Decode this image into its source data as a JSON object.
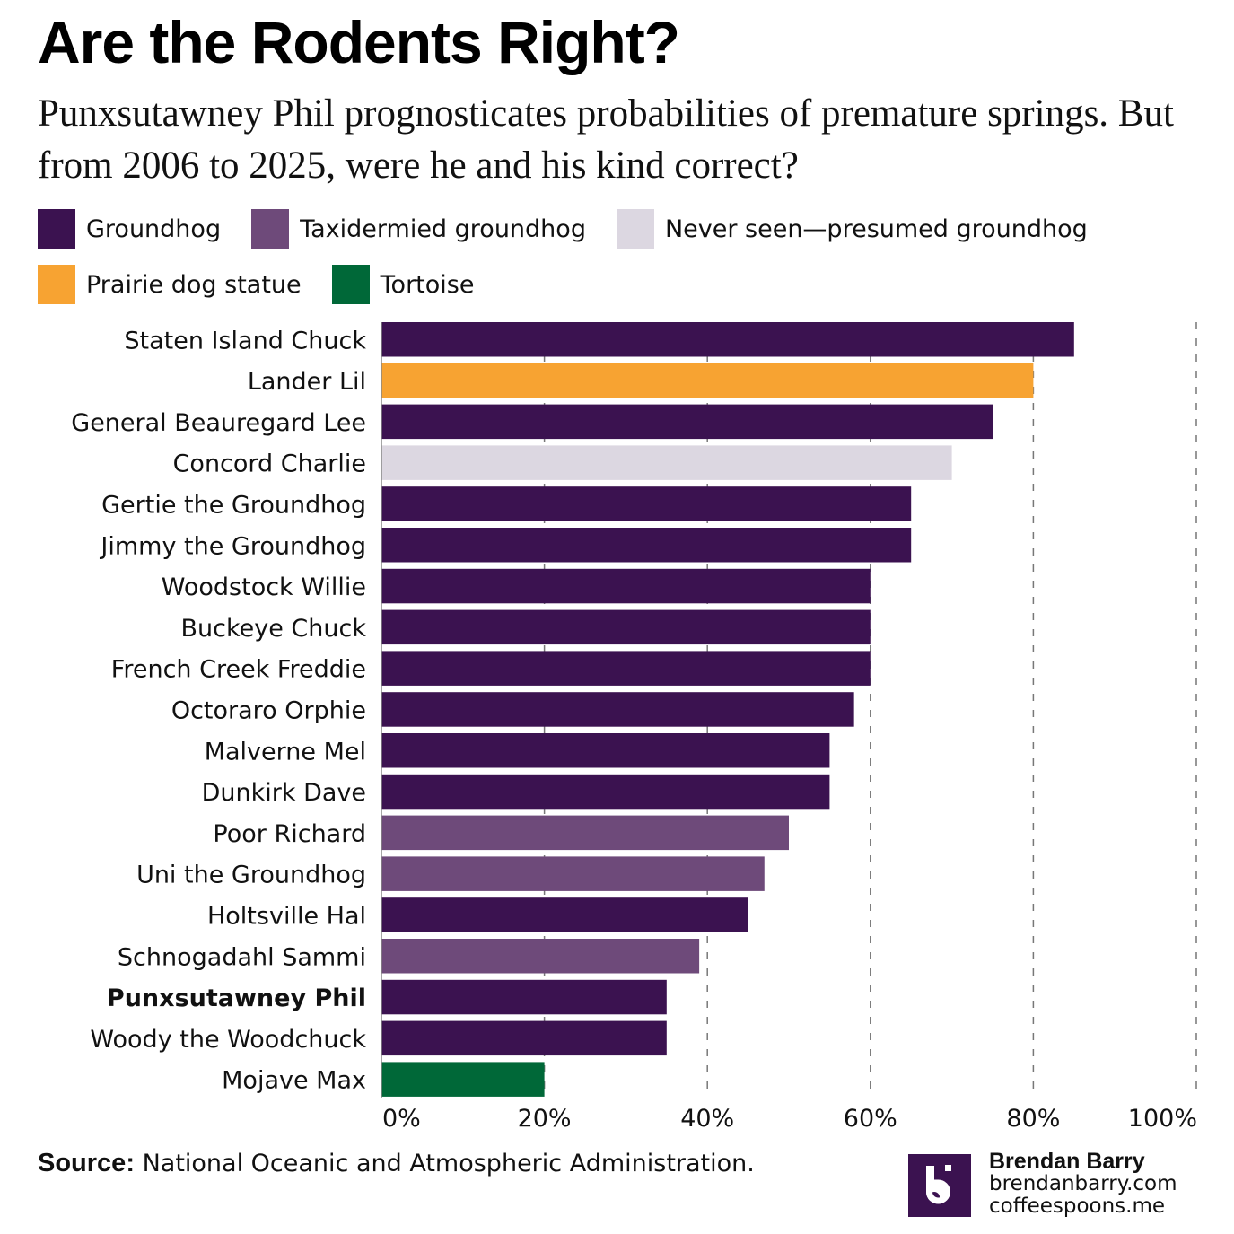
{
  "title": "Are the Rodents Right?",
  "subtitle": "Punxsutawney Phil prognosticates probabilities of premature springs. But from 2006 to 2025, were he and his kind correct?",
  "legend": [
    {
      "label": "Groundhog",
      "color": "#3b1250"
    },
    {
      "label": "Taxidermied groundhog",
      "color": "#6e4a7a"
    },
    {
      "label": "Never seen—presumed groundhog",
      "color": "#dcd7e1"
    },
    {
      "label": "Prairie dog statue",
      "color": "#f7a332"
    },
    {
      "label": "Tortoise",
      "color": "#006838"
    }
  ],
  "chart_data": {
    "type": "bar",
    "orientation": "horizontal",
    "title": "Are the Rodents Right?",
    "xlabel": "",
    "ylabel": "",
    "xlim": [
      0,
      100
    ],
    "grid": true,
    "legend_position": "top",
    "ticks": [
      "0%",
      "20%",
      "40%",
      "60%",
      "80%",
      "100%"
    ],
    "tick_values": [
      0,
      20,
      40,
      60,
      80,
      100
    ],
    "categories": [
      "Staten Island Chuck",
      "Lander Lil",
      "General Beauregard Lee",
      "Concord Charlie",
      "Gertie the Groundhog",
      "Jimmy the Groundhog",
      "Woodstock Willie",
      "Buckeye Chuck",
      "French Creek Freddie",
      "Octoraro Orphie",
      "Malverne Mel",
      "Dunkirk Dave",
      "Poor Richard",
      "Uni the Groundhog",
      "Holtsville Hal",
      "Schnogadahl Sammi",
      "Punxsutawney Phil",
      "Woody the Woodchuck",
      "Mojave Max"
    ],
    "values": [
      85,
      80,
      75,
      70,
      65,
      65,
      60,
      60,
      60,
      58,
      55,
      55,
      50,
      47,
      45,
      39,
      35,
      35,
      20
    ],
    "kinds": [
      "Groundhog",
      "Prairie dog statue",
      "Groundhog",
      "Never seen—presumed groundhog",
      "Groundhog",
      "Groundhog",
      "Groundhog",
      "Groundhog",
      "Groundhog",
      "Groundhog",
      "Groundhog",
      "Groundhog",
      "Taxidermied groundhog",
      "Taxidermied groundhog",
      "Groundhog",
      "Taxidermied groundhog",
      "Groundhog",
      "Groundhog",
      "Tortoise"
    ],
    "highlight": "Punxsutawney Phil",
    "unit": "%"
  },
  "footer": {
    "source_label": "Source:",
    "source_text": "National Oceanic and Atmospheric Administration."
  },
  "brand": {
    "name": "Brendan Barry",
    "site1": "brendanbarry.com",
    "site2": "coffeespoons.me",
    "logo_color": "#3b1250",
    "logo_glyph": "b-logo-icon"
  }
}
